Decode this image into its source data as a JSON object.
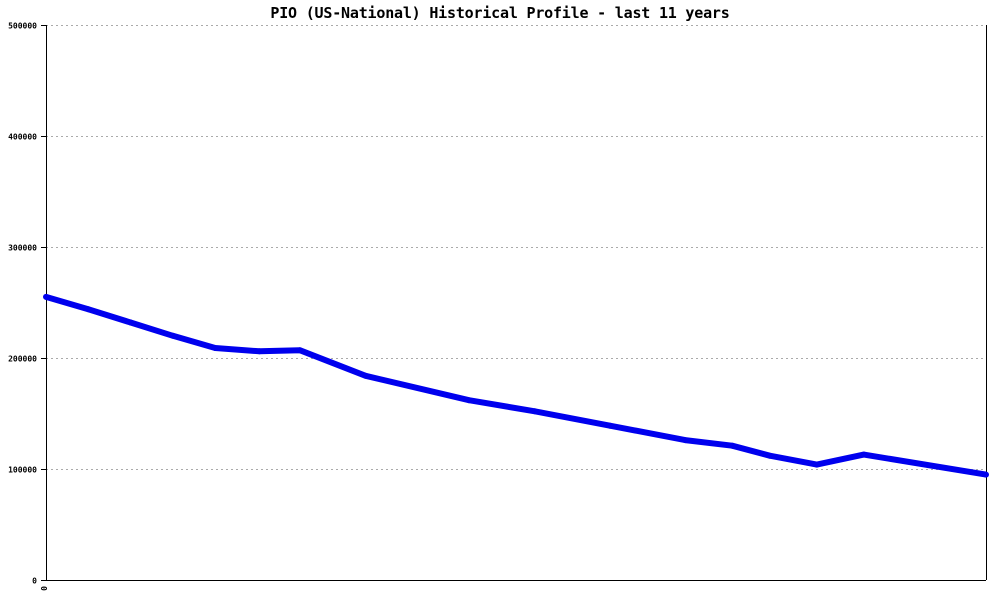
{
  "chart_data": {
    "type": "line",
    "title": "PIO (US-National) Historical Profile - last 11 years",
    "xlabel": "",
    "ylabel": "",
    "ylim": [
      0,
      500000
    ],
    "yticks": [
      0,
      100000,
      200000,
      300000,
      400000,
      500000
    ],
    "ytick_labels": [
      "0",
      "100000",
      "200000",
      "300000",
      "400000",
      "500000"
    ],
    "xtick_labels": [
      "0"
    ],
    "grid": true,
    "line_color": "#0000ee",
    "series": [
      {
        "x": [
          0,
          0.045,
          0.09,
          0.135,
          0.18,
          0.227,
          0.27,
          0.34,
          0.45,
          0.52,
          0.6,
          0.68,
          0.73,
          0.77,
          0.82,
          0.87,
          1.0
        ],
        "values": [
          255000,
          244000,
          232000,
          220000,
          209000,
          206000,
          207000,
          184000,
          162000,
          152000,
          139000,
          126000,
          121000,
          112000,
          104000,
          113000,
          95000
        ]
      }
    ]
  }
}
